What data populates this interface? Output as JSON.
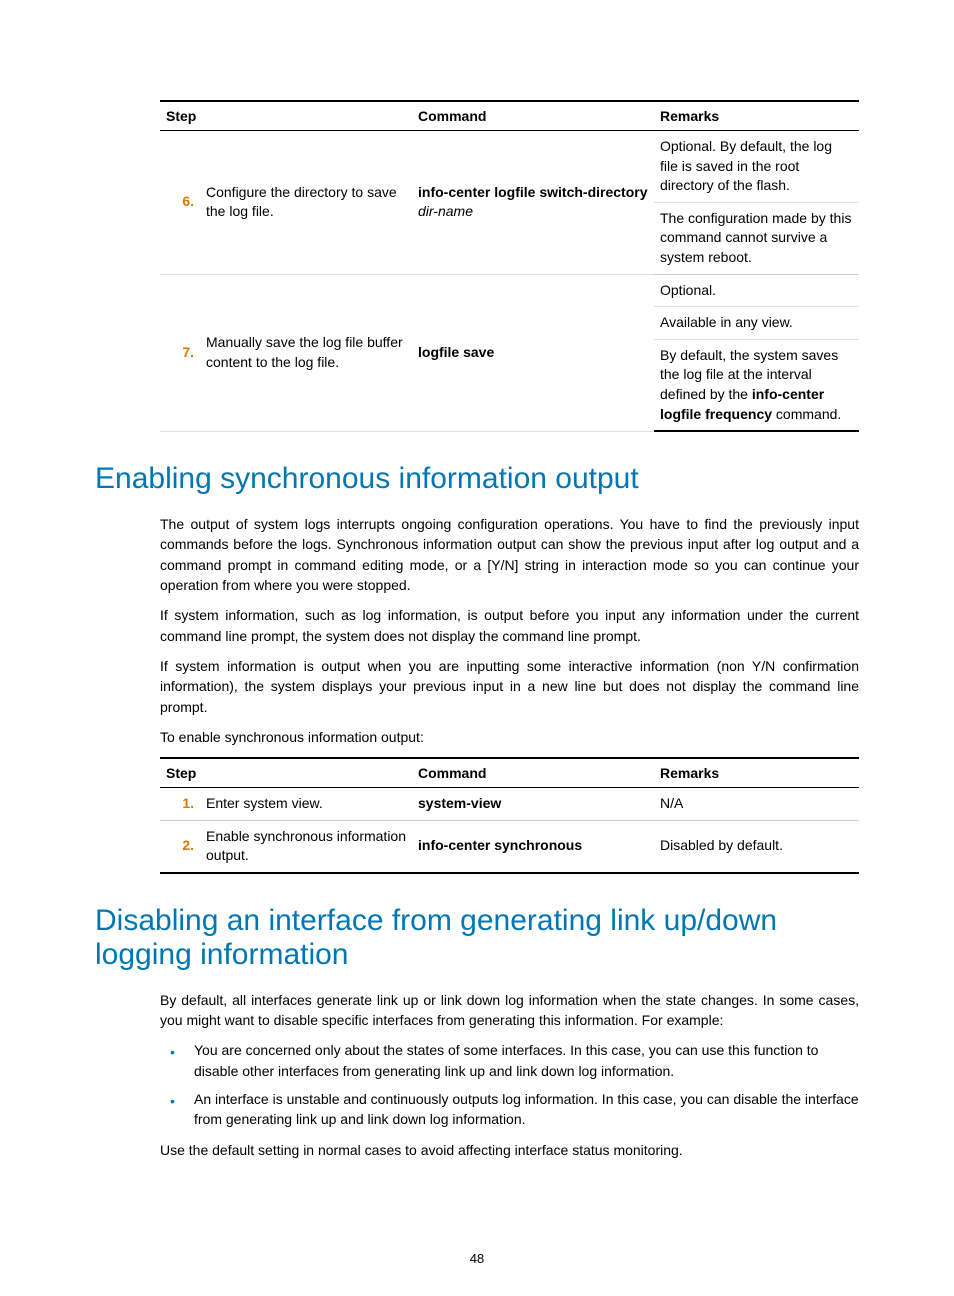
{
  "pageNumber": "48",
  "table1": {
    "headers": {
      "step": "Step",
      "command": "Command",
      "remarks": "Remarks"
    },
    "rows": [
      {
        "num": "6.",
        "step": "Configure the directory to save the log file.",
        "cmd_bold": "info-center logfile switch-directory",
        "cmd_italic": "dir-name",
        "remarks1": "Optional. By default, the log file is saved in the root directory of the flash.",
        "remarks2": "The configuration made by this command cannot survive a system reboot."
      },
      {
        "num": "7.",
        "step": "Manually save the log file buffer content to the log file.",
        "cmd_bold": "logfile save",
        "remarks1": "Optional.",
        "remarks2": "Available in any view.",
        "remarks3a": "By default, the system saves the log file at the interval defined by the ",
        "remarks3b": "info-center logfile frequency",
        "remarks3c": " command."
      }
    ]
  },
  "heading1": "Enabling synchronous information output",
  "para1": "The output of system logs interrupts ongoing configuration operations. You have to find the previously input commands before the logs. Synchronous information output can show the previous input after log output and a command prompt in command editing mode, or a [Y/N] string in interaction mode so you can continue your operation from where you were stopped.",
  "para2": "If system information, such as log information, is output before you input any information under the current command line prompt, the system does not display the command line prompt.",
  "para3": "If system information is output when you are inputting some interactive information (non Y/N confirmation information), the system displays your previous input in a new line but does not display the command line prompt.",
  "para4": "To enable synchronous information output:",
  "table2": {
    "headers": {
      "step": "Step",
      "command": "Command",
      "remarks": "Remarks"
    },
    "rows": [
      {
        "num": "1.",
        "step": "Enter system view.",
        "cmd": "system-view",
        "remarks": "N/A"
      },
      {
        "num": "2.",
        "step": "Enable synchronous information output.",
        "cmd": "info-center synchronous",
        "remarks": "Disabled by default."
      }
    ]
  },
  "heading2": "Disabling an interface from generating link up/down logging information",
  "para5": "By default, all interfaces generate link up or link down log information when the state changes. In some cases, you might want to disable specific interfaces from generating this information. For example:",
  "bullets": [
    "You are concerned only about the states of some interfaces. In this case, you can use this function to disable other interfaces from generating link up and link down log information.",
    "An interface is unstable and continuously outputs log information. In this case, you can disable the interface from generating link up and link down log information."
  ],
  "para6": "Use the default setting in normal cases to avoid affecting interface status monitoring."
}
